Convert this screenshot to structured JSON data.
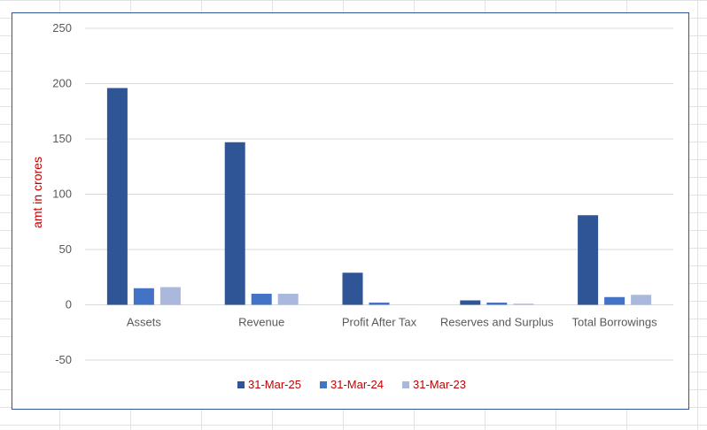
{
  "chart_data": {
    "type": "bar",
    "title": "",
    "xlabel": "",
    "ylabel": "amt in crores",
    "ylim": [
      -50,
      250
    ],
    "yticks": [
      250,
      200,
      150,
      100,
      50,
      0,
      -50
    ],
    "grid": true,
    "legend_position": "bottom",
    "categories": [
      "Assets",
      "Revenue",
      "Profit After Tax",
      "Reserves and Surplus",
      "Total Borrowings"
    ],
    "series": [
      {
        "name": "31-Mar-25",
        "color": "#2f5597",
        "values": [
          196,
          147,
          29,
          4,
          81
        ]
      },
      {
        "name": "31-Mar-24",
        "color": "#4472c4",
        "values": [
          15,
          10,
          2,
          2,
          7
        ]
      },
      {
        "name": "31-Mar-23",
        "color": "#a9b8dc",
        "values": [
          16,
          10,
          0,
          1,
          9
        ]
      }
    ],
    "colors": {
      "ylabel": "#c00000",
      "legend_text": "#c00000",
      "frame": "#2e5597",
      "tick_text": "#595959",
      "grid": "#d9d9d9"
    }
  }
}
